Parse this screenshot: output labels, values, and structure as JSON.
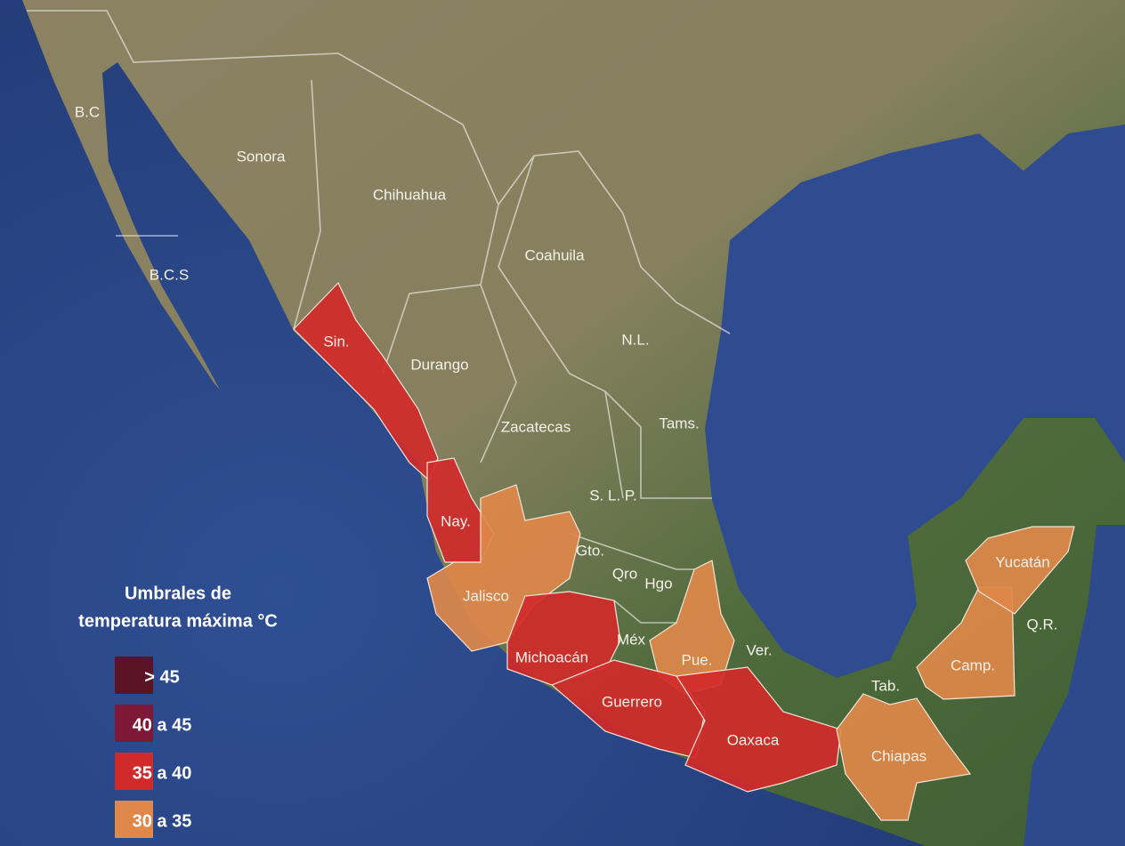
{
  "legend": {
    "title": [
      "Umbrales de",
      "temperatura máxima °C"
    ],
    "items": [
      {
        "label": "> 45",
        "color": "#5a1426"
      },
      {
        "label": "40 a 45",
        "color": "#7d1838"
      },
      {
        "label": "35 a 40",
        "color": "#d12a2a"
      },
      {
        "label": "30 a 35",
        "color": "#e0884a"
      }
    ]
  },
  "states": [
    {
      "label": "B.C"
    },
    {
      "label": "Sonora"
    },
    {
      "label": "Chihuahua"
    },
    {
      "label": "B.C.S"
    },
    {
      "label": "Coahuila"
    },
    {
      "label": "Sin.",
      "threshold": "35 a 40"
    },
    {
      "label": "N.L."
    },
    {
      "label": "Durango"
    },
    {
      "label": "Tams."
    },
    {
      "label": "Zacatecas"
    },
    {
      "label": "S. L. P."
    },
    {
      "label": "Nay.",
      "threshold": "35 a 40"
    },
    {
      "label": "Gto."
    },
    {
      "label": "Qro"
    },
    {
      "label": "Jalisco",
      "threshold": "30 a 35"
    },
    {
      "label": "Hgo"
    },
    {
      "label": "Méx"
    },
    {
      "label": "Michoacán",
      "threshold": "35 a 40"
    },
    {
      "label": "Pue.",
      "threshold": "30 a 35"
    },
    {
      "label": "Ver."
    },
    {
      "label": "Guerrero",
      "threshold": "35 a 40"
    },
    {
      "label": "Tab."
    },
    {
      "label": "Oaxaca",
      "threshold": "35 a 40"
    },
    {
      "label": "Chiapas",
      "threshold": "30 a 35"
    },
    {
      "label": "Camp.",
      "threshold": "30 a 35"
    },
    {
      "label": "Yucatán",
      "threshold": "30 a 35"
    },
    {
      "label": "Q.R."
    }
  ]
}
